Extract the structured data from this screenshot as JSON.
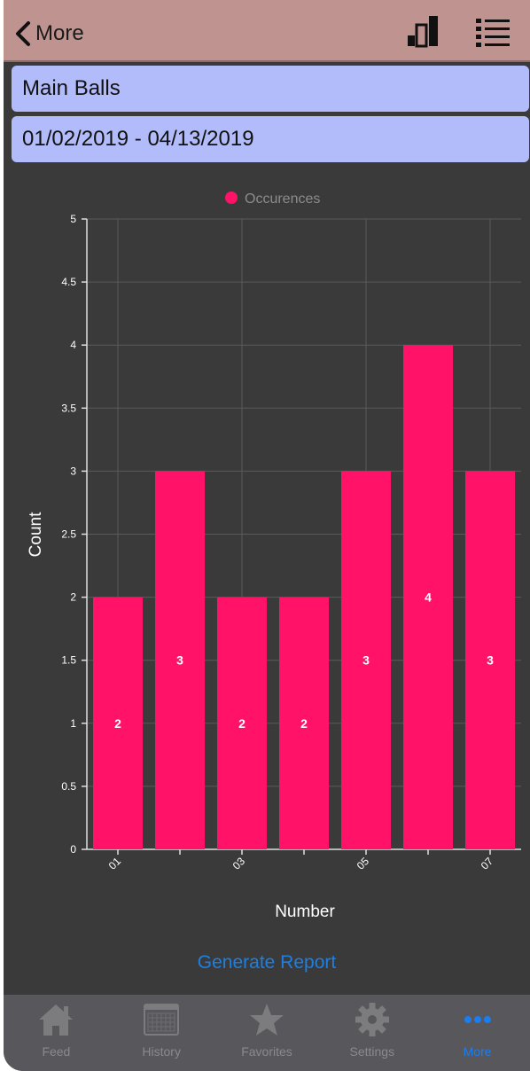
{
  "nav": {
    "back_label": "More"
  },
  "selectors": {
    "balls": "Main Balls",
    "date_range": "01/02/2019 - 04/13/2019"
  },
  "colors": {
    "bar": "#ff1268",
    "nav": "#bf9490",
    "selector": "#b3bcfb",
    "background": "#3a3a3a",
    "link": "#1f7fe0",
    "tab_active": "#1a7ef0"
  },
  "chart_data": {
    "type": "bar",
    "categories": [
      "01",
      "02",
      "03",
      "04",
      "05",
      "06",
      "07"
    ],
    "x_tick_labels": [
      "01",
      "",
      "03",
      "",
      "05",
      "",
      "07"
    ],
    "values": [
      2,
      3,
      2,
      2,
      3,
      4,
      3
    ],
    "data_labels": [
      "2",
      "3",
      "2",
      "2",
      "3",
      "4",
      "3"
    ],
    "legend": "Occurences",
    "xlabel": "Number",
    "ylabel": "Count",
    "ylim": [
      0,
      5
    ],
    "y_ticks": [
      "0",
      "0.5",
      "1",
      "1.5",
      "2",
      "2.5",
      "3",
      "3.5",
      "4",
      "4.5",
      "5"
    ],
    "grid": true,
    "legend_placement": "top-center"
  },
  "generate_report_label": "Generate Report",
  "tabs": [
    {
      "label": "Feed",
      "icon": "house-icon",
      "active": false
    },
    {
      "label": "History",
      "icon": "calendar-icon",
      "active": false
    },
    {
      "label": "Favorites",
      "icon": "star-icon",
      "active": false
    },
    {
      "label": "Settings",
      "icon": "gear-icon",
      "active": false
    },
    {
      "label": "More",
      "icon": "more-dots-icon",
      "active": true
    }
  ]
}
